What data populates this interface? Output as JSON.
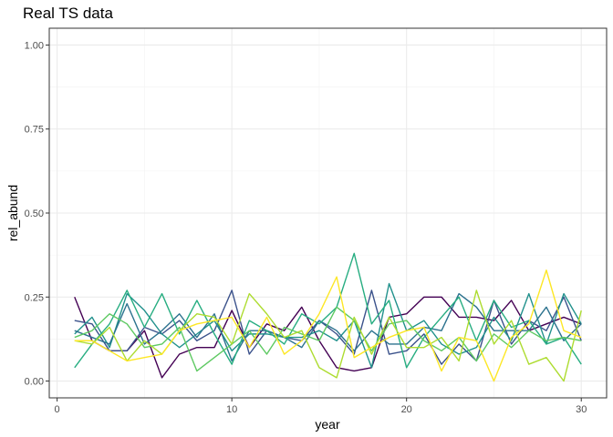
{
  "chart_data": {
    "type": "line",
    "title": "Real TS data",
    "xlabel": "year",
    "ylabel": "rel_abund",
    "xlim": [
      0,
      30
    ],
    "ylim": [
      0,
      1
    ],
    "x_ticks": [
      0,
      10,
      20,
      30
    ],
    "y_ticks": [
      0.0,
      0.25,
      0.5,
      0.75,
      1.0
    ],
    "x_tick_labels": [
      "0",
      "10",
      "20",
      "30"
    ],
    "y_tick_labels": [
      "0.00",
      "0.25",
      "0.50",
      "0.75",
      "1.00"
    ],
    "grid": true,
    "legend": "none",
    "x": [
      1,
      2,
      3,
      4,
      5,
      6,
      7,
      8,
      9,
      10,
      11,
      12,
      13,
      14,
      15,
      16,
      17,
      18,
      19,
      20,
      21,
      22,
      23,
      24,
      25,
      26,
      27,
      28,
      29,
      30
    ],
    "series": [
      {
        "color": "#440154",
        "values": [
          0.25,
          0.12,
          0.09,
          0.09,
          0.15,
          0.01,
          0.08,
          0.1,
          0.1,
          0.21,
          0.1,
          0.17,
          0.15,
          0.22,
          0.12,
          0.04,
          0.03,
          0.04,
          0.19,
          0.2,
          0.25,
          0.25,
          0.19,
          0.19,
          0.18,
          0.24,
          0.15,
          0.17,
          0.19,
          0.17
        ]
      },
      {
        "color": "#3b528b",
        "values": [
          0.18,
          0.17,
          0.09,
          0.09,
          0.16,
          0.14,
          0.18,
          0.12,
          0.15,
          0.27,
          0.08,
          0.15,
          0.13,
          0.12,
          0.18,
          0.14,
          0.08,
          0.27,
          0.08,
          0.09,
          0.14,
          0.05,
          0.11,
          0.06,
          0.24,
          0.11,
          0.18,
          0.15,
          0.25,
          0.12
        ]
      },
      {
        "color": "#21918c",
        "values": [
          0.14,
          0.19,
          0.1,
          0.26,
          0.21,
          0.14,
          0.1,
          0.14,
          0.18,
          0.09,
          0.14,
          0.14,
          0.13,
          0.13,
          0.15,
          0.12,
          0.18,
          0.04,
          0.29,
          0.15,
          0.18,
          0.11,
          0.08,
          0.1,
          0.19,
          0.12,
          0.26,
          0.11,
          0.26,
          0.17
        ]
      },
      {
        "color": "#2c728e",
        "values": [
          0.15,
          0.13,
          0.11,
          0.23,
          0.11,
          0.15,
          0.2,
          0.13,
          0.2,
          0.06,
          0.15,
          0.15,
          0.13,
          0.1,
          0.18,
          0.15,
          0.09,
          0.15,
          0.11,
          0.11,
          0.16,
          0.15,
          0.26,
          0.22,
          0.15,
          0.15,
          0.15,
          0.22,
          0.12,
          0.17
        ]
      },
      {
        "color": "#27ad81",
        "values": [
          0.04,
          0.11,
          0.17,
          0.27,
          0.16,
          0.26,
          0.14,
          0.24,
          0.14,
          0.05,
          0.18,
          0.15,
          0.11,
          0.2,
          0.17,
          0.22,
          0.38,
          0.17,
          0.24,
          0.04,
          0.13,
          0.19,
          0.25,
          0.12,
          0.24,
          0.16,
          0.18,
          0.11,
          0.13,
          0.05
        ]
      },
      {
        "color": "#5ec962",
        "values": [
          0.13,
          0.15,
          0.2,
          0.17,
          0.1,
          0.11,
          0.16,
          0.03,
          0.07,
          0.11,
          0.15,
          0.08,
          0.16,
          0.14,
          0.12,
          0.22,
          0.18,
          0.09,
          0.17,
          0.18,
          0.12,
          0.09,
          0.13,
          0.06,
          0.14,
          0.1,
          0.15,
          0.12,
          0.13,
          0.12
        ]
      },
      {
        "color": "#addc30",
        "values": [
          0.12,
          0.11,
          0.16,
          0.06,
          0.12,
          0.08,
          0.15,
          0.2,
          0.19,
          0.11,
          0.26,
          0.2,
          0.13,
          0.15,
          0.04,
          0.01,
          0.19,
          0.08,
          0.19,
          0.1,
          0.1,
          0.13,
          0.06,
          0.27,
          0.11,
          0.18,
          0.05,
          0.07,
          0.0,
          0.21
        ]
      },
      {
        "color": "#fde725",
        "values": [
          0.12,
          0.12,
          0.09,
          0.06,
          0.07,
          0.08,
          0.15,
          0.17,
          0.18,
          0.19,
          0.1,
          0.19,
          0.08,
          0.12,
          0.2,
          0.31,
          0.07,
          0.1,
          0.13,
          0.15,
          0.16,
          0.03,
          0.13,
          0.12,
          0.0,
          0.13,
          0.17,
          0.33,
          0.15,
          0.13
        ]
      }
    ]
  }
}
